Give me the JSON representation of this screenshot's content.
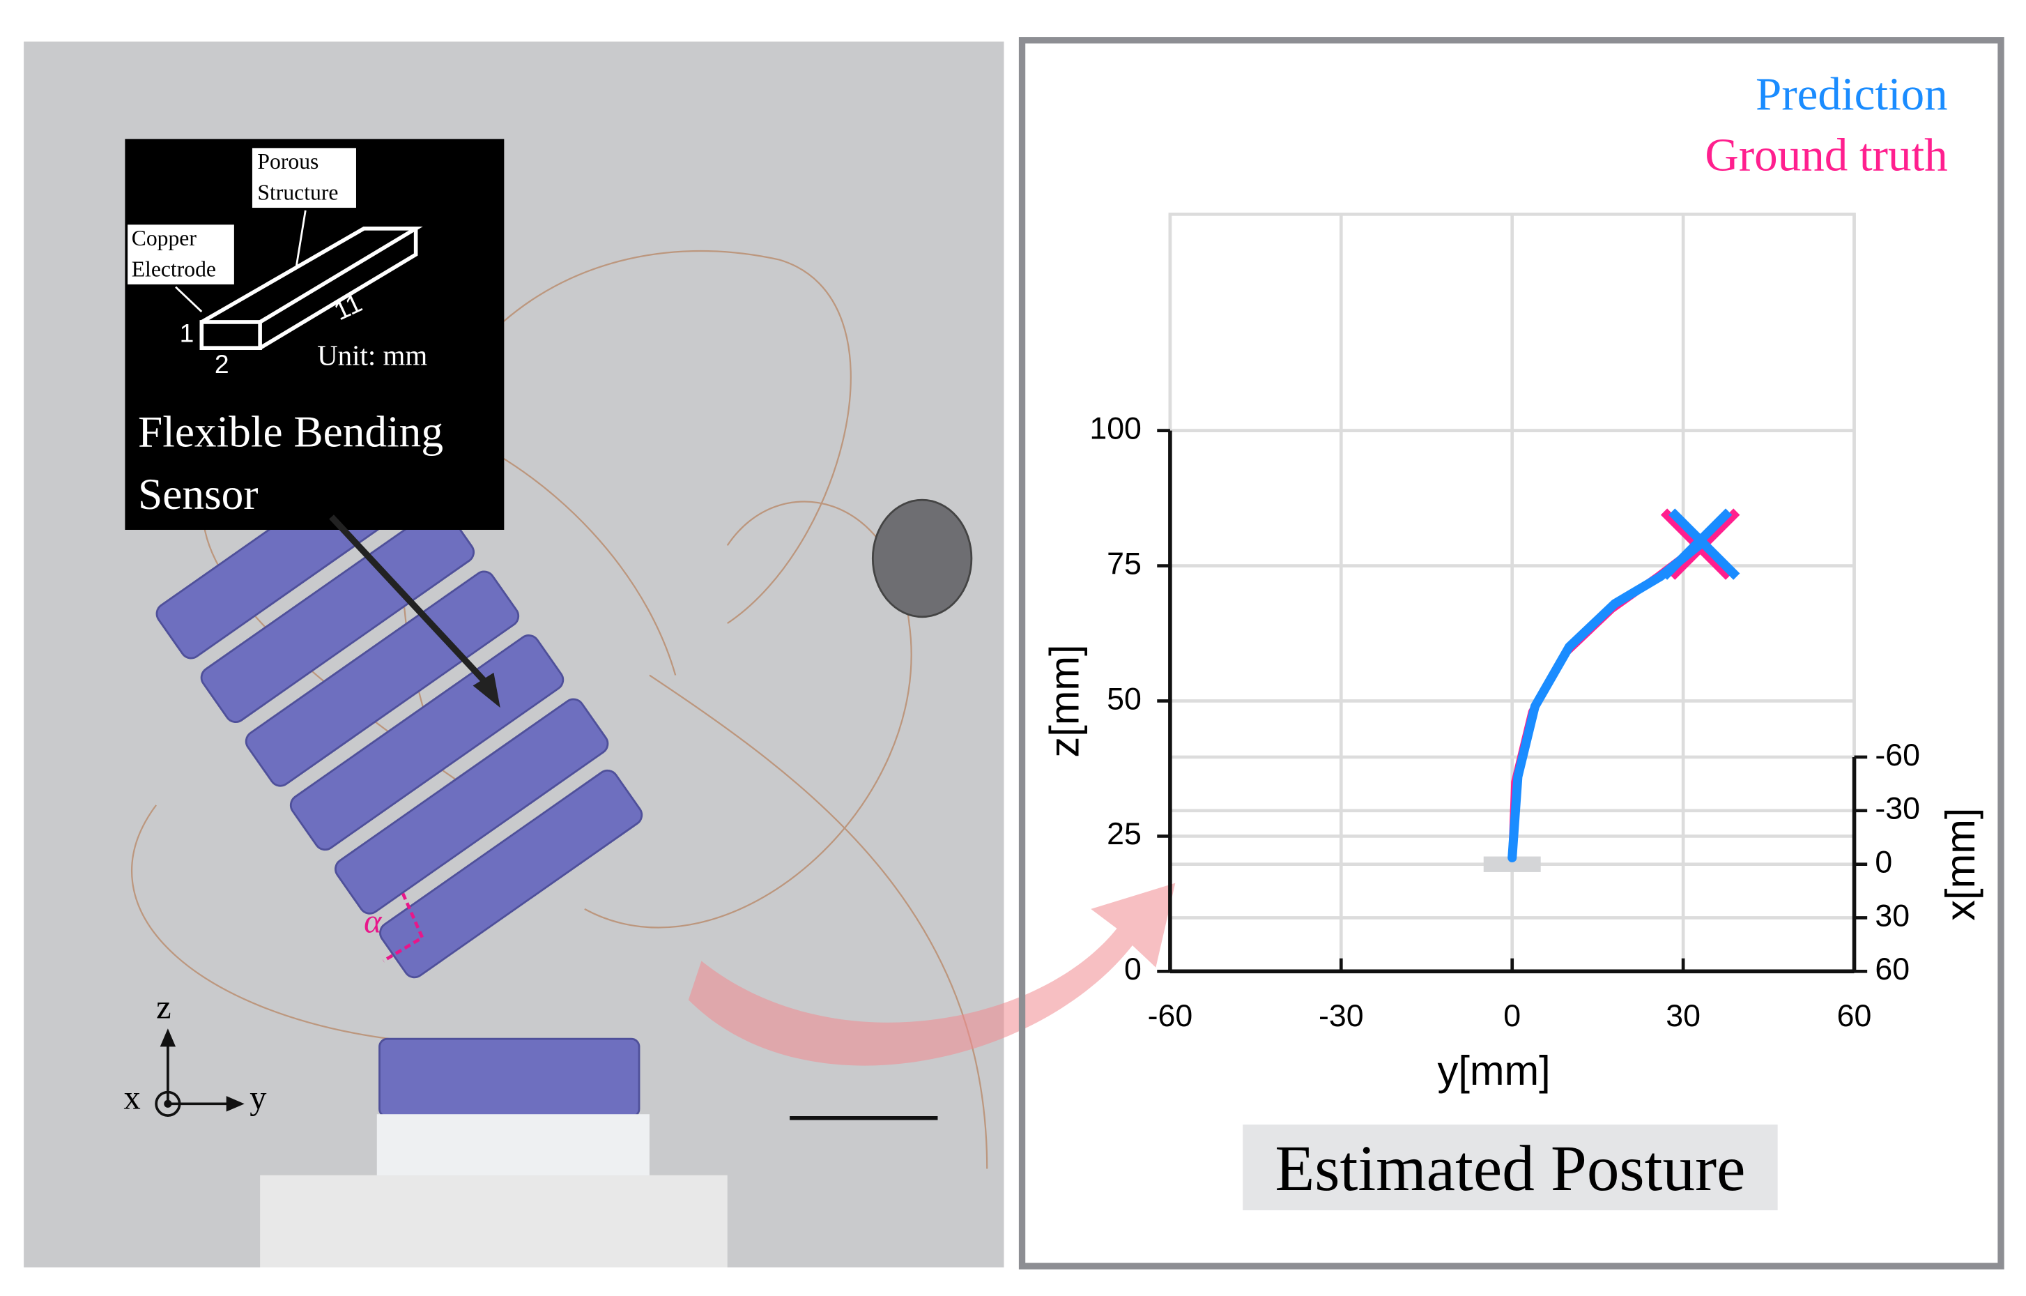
{
  "photo": {
    "inset": {
      "porous_label": [
        "Porous",
        "Structure"
      ],
      "electrode_label": [
        "Copper",
        "Electrode"
      ],
      "dim_thickness": "1",
      "dim_width": "2",
      "dim_length": "11",
      "unit": "Unit: mm",
      "title": [
        "Flexible Bending",
        "Sensor"
      ]
    },
    "angle_label": "α",
    "axes": {
      "z": "z",
      "x": "x",
      "y": "y"
    }
  },
  "chart_data": {
    "type": "line",
    "xlabel": "y[mm]",
    "ylabel": "z[mm]",
    "y2label": "x[mm]",
    "xlim": [
      -60,
      60
    ],
    "xticks": [
      -60,
      -30,
      0,
      30,
      60
    ],
    "ylim": [
      0,
      140
    ],
    "yticks": [
      0,
      25,
      50,
      75,
      100
    ],
    "y2lim": [
      -60,
      60
    ],
    "y2ticks": [
      -60,
      -30,
      0,
      30,
      60
    ],
    "grid": true,
    "legend": "upper right",
    "series": [
      {
        "name": "Prediction",
        "color": "#1a8cff",
        "x": [
          0,
          1,
          4,
          10,
          18,
          26,
          33
        ],
        "values": [
          21,
          36,
          49,
          60,
          68,
          73,
          79
        ]
      },
      {
        "name": "Ground truth",
        "color": "#ff1f8e",
        "x": [
          0,
          0.5,
          3.5,
          9.5,
          17.5,
          25.5,
          33
        ],
        "values": [
          21,
          35,
          48,
          59,
          67,
          73,
          79
        ]
      }
    ]
  },
  "caption": "Estimated Posture"
}
